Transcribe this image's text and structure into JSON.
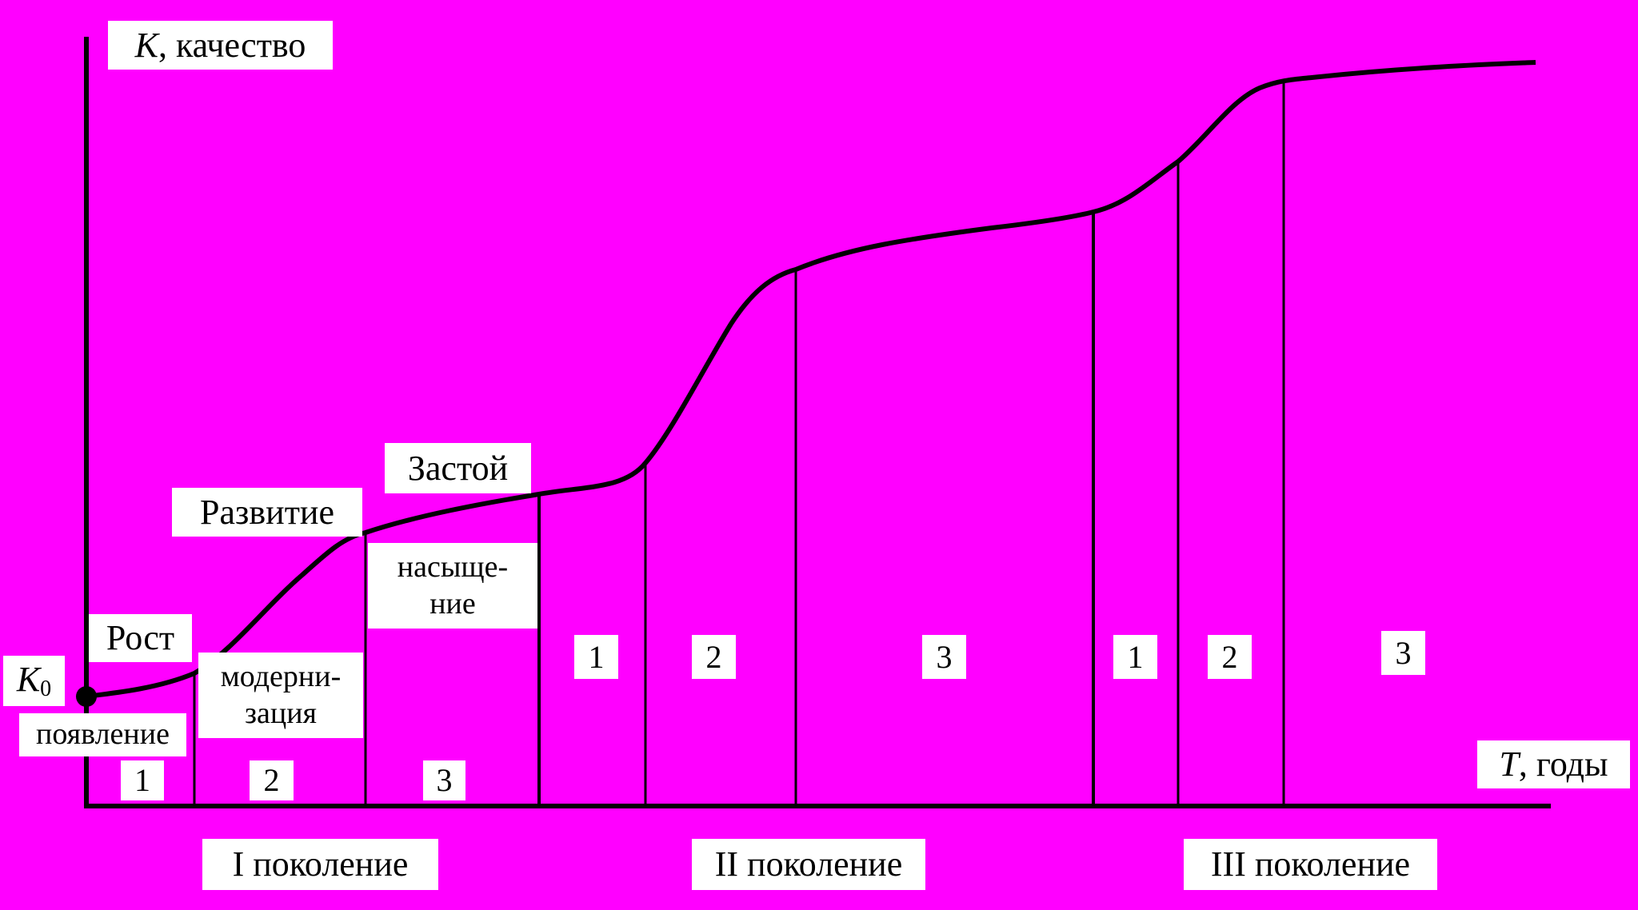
{
  "axes": {
    "y_label": {
      "symbol": "K",
      "text": ", качество"
    },
    "x_label": {
      "symbol": "T",
      "text": ", годы"
    },
    "origin": {
      "symbol": "K",
      "subscript": "0"
    }
  },
  "phases": {
    "growth": "Рост",
    "development": "Развитие",
    "stagnation": "Застой"
  },
  "stage_names": {
    "emergence": "появление",
    "modernization": [
      "модерни-",
      "зация"
    ],
    "saturation": [
      "насыще-",
      "ние"
    ]
  },
  "generations": [
    {
      "label": "I поколение",
      "stages": [
        "1",
        "2",
        "3"
      ]
    },
    {
      "label": "II поколение",
      "stages": [
        "1",
        "2",
        "3"
      ]
    },
    {
      "label": "III поколение",
      "stages": [
        "1",
        "2",
        "3"
      ]
    }
  ]
}
